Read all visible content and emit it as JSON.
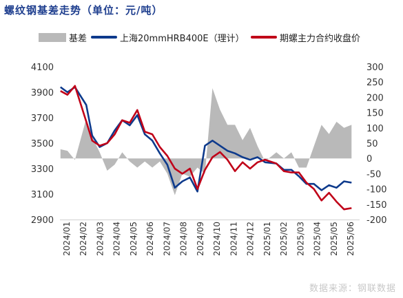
{
  "title": "螺纹钢基差走势（单位：元/吨）",
  "source_note": "数据来源：钢联数据",
  "colors": {
    "basis": "#b9b9b9",
    "spot": "#0d3a8c",
    "futures": "#c00018",
    "title": "#1f3f8f"
  },
  "chart_data": {
    "type": "line",
    "title": "螺纹钢基差走势（单位：元/吨）",
    "legend_position": "top",
    "grid": false,
    "x_tick_labels": [
      "2024/01",
      "2024/02",
      "2024/03",
      "2024/04",
      "2024/05",
      "2024/06",
      "2024/07",
      "2024/08",
      "2024/09",
      "2024/10",
      "2024/11",
      "2024/12",
      "2025/01",
      "2025/02",
      "2025/03",
      "2025/04",
      "2025/05",
      "2025/06"
    ],
    "y_left": {
      "ticks": [
        2900,
        3100,
        3300,
        3500,
        3700,
        3900,
        4100
      ],
      "range": [
        2900,
        4100
      ]
    },
    "y_right": {
      "ticks": [
        -200,
        -150,
        -100,
        -50,
        0,
        50,
        100,
        150,
        200,
        250,
        300
      ],
      "range": [
        -200,
        300
      ]
    },
    "x": [
      "2024-01-02",
      "2024-01-15",
      "2024-01-29",
      "2024-02-19",
      "2024-03-01",
      "2024-03-15",
      "2024-03-29",
      "2024-04-12",
      "2024-04-26",
      "2024-05-10",
      "2024-05-24",
      "2024-06-07",
      "2024-06-21",
      "2024-07-05",
      "2024-07-19",
      "2024-08-02",
      "2024-08-16",
      "2024-08-30",
      "2024-09-13",
      "2024-09-27",
      "2024-10-11",
      "2024-10-25",
      "2024-11-08",
      "2024-11-22",
      "2024-12-06",
      "2024-12-20",
      "2025-01-03",
      "2025-01-17",
      "2025-02-07",
      "2025-02-21",
      "2025-03-07",
      "2025-03-21",
      "2025-04-04",
      "2025-04-18",
      "2025-05-02",
      "2025-05-16",
      "2025-05-30",
      "2025-06-13",
      "2025-06-27"
    ],
    "series": [
      {
        "name": "基差",
        "type": "area",
        "axis": "right",
        "values": [
          30,
          25,
          -5,
          130,
          70,
          20,
          -40,
          -20,
          20,
          -10,
          -30,
          -10,
          -30,
          -10,
          -50,
          -120,
          -50,
          -60,
          -30,
          -50,
          230,
          160,
          110,
          110,
          60,
          100,
          40,
          -10,
          20,
          0,
          20,
          -30,
          -30,
          40,
          110,
          80,
          120,
          100,
          110
        ]
      },
      {
        "name": "上海20mmHRB400E（理计）",
        "type": "line",
        "axis": "left",
        "values": [
          3940,
          3900,
          3940,
          3800,
          3560,
          3470,
          3500,
          3600,
          3680,
          3640,
          3720,
          3570,
          3520,
          3420,
          3330,
          3150,
          3200,
          3230,
          3120,
          3480,
          3520,
          3480,
          3440,
          3420,
          3390,
          3370,
          3390,
          3350,
          3340,
          3290,
          3290,
          3240,
          3180,
          3180,
          3130,
          3170,
          3150,
          3200,
          3190
        ]
      },
      {
        "name": "期螺主力合约收盘价",
        "type": "line",
        "axis": "left",
        "values": [
          3910,
          3880,
          3950,
          3670,
          3520,
          3480,
          3500,
          3570,
          3680,
          3660,
          3760,
          3590,
          3570,
          3470,
          3400,
          3300,
          3260,
          3300,
          3140,
          3290,
          3390,
          3430,
          3370,
          3280,
          3350,
          3300,
          3350,
          3370,
          3340,
          3280,
          3270,
          3270,
          3190,
          3140,
          3050,
          3110,
          3040,
          2980,
          2990
        ]
      }
    ]
  }
}
